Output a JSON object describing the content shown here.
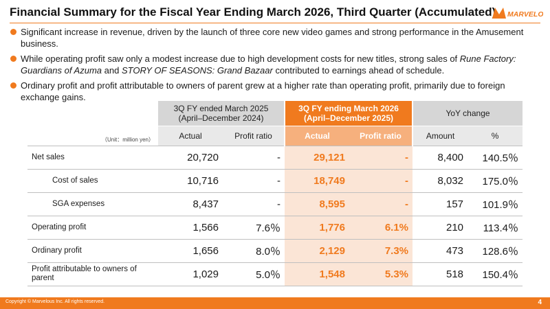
{
  "header": {
    "title": "Financial Summary for the Fiscal Year Ending March 2026, Third Quarter (Accumulated)",
    "logo_text": "MARVELOUS"
  },
  "bullets": [
    {
      "parts": [
        "Significant increase in revenue, driven by the launch of three core new video games and strong performance in the Amusement business."
      ]
    },
    {
      "parts": [
        "While operating profit saw only a modest increase due to high development costs for new titles, strong sales of ",
        "Rune Factory: Guardians of Azuma",
        " and ",
        "STORY OF SEASONS: Grand Bazaar",
        " contributed to earnings ahead of schedule."
      ]
    },
    {
      "parts": [
        "Ordinary profit and profit attributable to owners of parent grew at a higher rate than operating profit, primarily due to foreign exchange gains."
      ]
    }
  ],
  "table": {
    "unit": "（Unit：million yen）",
    "groups": {
      "prev": {
        "line1": "3Q FY ended March 2025",
        "line2": "(April–December 2024)"
      },
      "curr": {
        "line1": "3Q FY ending March 2026",
        "line2": "(April–December 2025)"
      },
      "yoy": "YoY change"
    },
    "columns": {
      "prev_actual": "Actual",
      "prev_ratio": "Profit ratio",
      "curr_actual": "Actual",
      "curr_ratio": "Profit ratio",
      "amount": "Amount",
      "pct": "%"
    },
    "rows": [
      {
        "label": "Net sales",
        "prev_actual": "20,720",
        "prev_ratio": "-",
        "curr_actual": "29,121",
        "curr_ratio": "-",
        "amount": "8,400",
        "pct": "140.5％"
      },
      {
        "label": "Cost of sales",
        "prev_actual": "10,716",
        "prev_ratio": "-",
        "curr_actual": "18,749",
        "curr_ratio": "-",
        "amount": "8,032",
        "pct": "175.0％"
      },
      {
        "label": "SGA expenses",
        "prev_actual": "8,437",
        "prev_ratio": "-",
        "curr_actual": "8,595",
        "curr_ratio": "-",
        "amount": "157",
        "pct": "101.9％"
      },
      {
        "label": "Operating profit",
        "prev_actual": "1,566",
        "prev_ratio": "7.6％",
        "curr_actual": "1,776",
        "curr_ratio": "6.1%",
        "amount": "210",
        "pct": "113.4％"
      },
      {
        "label": "Ordinary profit",
        "prev_actual": "1,656",
        "prev_ratio": "8.0％",
        "curr_actual": "2,129",
        "curr_ratio": "7.3%",
        "amount": "473",
        "pct": "128.6％"
      },
      {
        "label": "Profit attributable to owners of parent",
        "prev_actual": "1,029",
        "prev_ratio": "5.0％",
        "curr_actual": "1,548",
        "curr_ratio": "5.3%",
        "amount": "518",
        "pct": "150.4％"
      }
    ]
  },
  "footer": {
    "copyright": "Copyright © Marvelous Inc. All rights reserved.",
    "page_number": "4"
  },
  "colors": {
    "accent": "#f07a1e",
    "accent_light": "#f6b07d",
    "accent_pale": "#fbe5d6",
    "header_gray": "#d6d6d6"
  }
}
